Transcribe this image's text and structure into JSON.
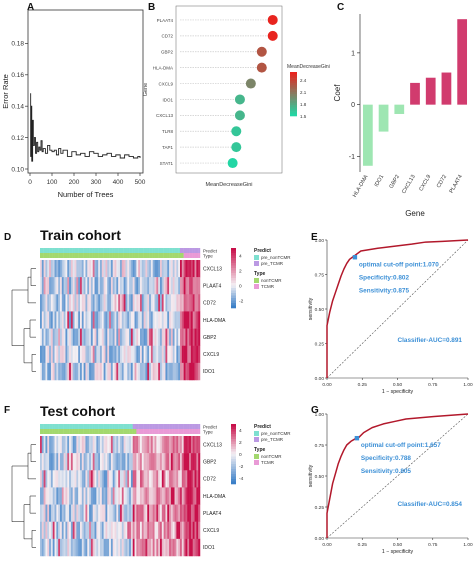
{
  "panel_labels": {
    "a": "A",
    "b": "B",
    "c": "C",
    "d": "D",
    "e": "E",
    "f": "F",
    "g": "G"
  },
  "colors": {
    "line": "#222222",
    "roc": "#b2182b",
    "diag": "#555555",
    "cut": "#3b8fd6",
    "annot": "#3b8fd6",
    "bar_pos": "#d13b6e",
    "bar_neg": "#9ee6b2",
    "heat_high": "#c8104a",
    "heat_low": "#3a7fc7",
    "heat_mid": "#f4f0f4",
    "pred_non": "#7ee0d0",
    "pred_tcmr": "#bb99e3",
    "type_non": "#a3d86e",
    "type_tcmr": "#e99ad6"
  },
  "chart_data": [
    {
      "id": "a",
      "type": "line",
      "xlabel": "Number of Trees",
      "ylabel": "Error Rate",
      "xlim": [
        0,
        500
      ],
      "ylim": [
        0.1,
        0.2
      ],
      "xticks": [
        0,
        100,
        200,
        300,
        400,
        500
      ],
      "yticks": [
        0.1,
        0.12,
        0.14,
        0.16,
        0.18
      ],
      "ytick_labels": [
        "0.10",
        "0.12",
        "0.14",
        "0.16",
        "0.18"
      ],
      "series": [
        {
          "x": [
            1,
            3,
            5,
            8,
            12,
            15,
            20,
            25,
            30,
            35,
            40,
            45,
            50,
            55,
            60,
            70,
            80,
            90,
            100,
            110,
            120,
            130,
            140,
            150,
            170,
            190,
            210,
            230,
            250,
            270,
            290,
            310,
            330,
            350,
            370,
            390,
            410,
            430,
            450,
            470,
            490,
            500
          ],
          "y": [
            0.148,
            0.108,
            0.14,
            0.105,
            0.131,
            0.115,
            0.12,
            0.11,
            0.117,
            0.111,
            0.114,
            0.112,
            0.118,
            0.111,
            0.113,
            0.11,
            0.115,
            0.112,
            0.111,
            0.112,
            0.109,
            0.113,
            0.11,
            0.112,
            0.108,
            0.111,
            0.109,
            0.11,
            0.108,
            0.111,
            0.11,
            0.108,
            0.109,
            0.11,
            0.108,
            0.109,
            0.107,
            0.109,
            0.108,
            0.107,
            0.108,
            0.107
          ]
        }
      ]
    },
    {
      "id": "b",
      "type": "scatter",
      "xlabel": "MeanDecreaseGini",
      "ylabel": "Gene",
      "categories": [
        "PLAAT4",
        "CD72",
        "GBP2",
        "HLA-DMA",
        "CXCL9",
        "IDO1",
        "CXCL13",
        "TLR8",
        "TAP1",
        "STAT1"
      ],
      "values": [
        2.6,
        2.6,
        2.3,
        2.3,
        2.0,
        1.7,
        1.7,
        1.6,
        1.6,
        1.5
      ],
      "xlim": [
        0,
        2.8
      ],
      "legend": {
        "title": "MeanDecreaseGini",
        "ticks": [
          "2.4",
          "2.1",
          "1.8",
          "1.5"
        ],
        "tick_values": [
          2.4,
          2.1,
          1.8,
          1.5
        ],
        "range": [
          1.5,
          2.6
        ],
        "high": "#e8241f",
        "low": "#22d6a4"
      }
    },
    {
      "id": "c",
      "type": "bar",
      "xlabel": "Gene",
      "ylabel": "Coef",
      "categories": [
        "HLA-DMA",
        "IDO1",
        "GBP2",
        "CXCL13",
        "CXCL9",
        "CD72",
        "PLAAT4"
      ],
      "values": [
        -1.18,
        -0.52,
        -0.18,
        0.42,
        0.52,
        0.62,
        1.65
      ],
      "ylim": [
        -1.3,
        1.75
      ],
      "yticks": [
        -1,
        0,
        1
      ],
      "ytick_labels": [
        "-1",
        "0",
        "1"
      ]
    },
    {
      "id": "d",
      "type": "heatmap",
      "title": "Train cohort",
      "rows": [
        "CXCL13",
        "PLAAT4",
        "CD72",
        "HLA-DMA",
        "GBP2",
        "CXCL9",
        "IDO1"
      ],
      "annotation_rows": [
        "Predict",
        "Type"
      ],
      "legend": {
        "predict_title": "Predict",
        "predict_items": [
          "pre_nonTCMR",
          "pre_TCMR"
        ],
        "type_title": "Type",
        "type_items": [
          "nonTCMR",
          "TCMR"
        ],
        "scale_ticks": [
          "4",
          "2",
          "0",
          "-2"
        ],
        "scale_tick_values": [
          4,
          2,
          0,
          -2
        ],
        "scale_range": [
          -3,
          5
        ]
      }
    },
    {
      "id": "e",
      "type": "line",
      "xlabel": "1 − specificity",
      "ylabel": "sensitivity",
      "xlim": [
        0,
        1
      ],
      "ylim": [
        0,
        1
      ],
      "ticks": [
        0,
        0.25,
        0.5,
        0.75,
        1
      ],
      "tick_labels": [
        "0.00",
        "0.25",
        "0.50",
        "0.75",
        "1.00"
      ],
      "roc_x": [
        0,
        0,
        0.02,
        0.04,
        0.06,
        0.08,
        0.1,
        0.12,
        0.14,
        0.16,
        0.18,
        0.2,
        0.24,
        0.3,
        0.36,
        0.44,
        0.52,
        0.6,
        0.7,
        0.82,
        1
      ],
      "roc_y": [
        0,
        0.38,
        0.48,
        0.56,
        0.62,
        0.68,
        0.74,
        0.79,
        0.83,
        0.86,
        0.875,
        0.89,
        0.92,
        0.93,
        0.94,
        0.95,
        0.96,
        0.97,
        0.985,
        0.99,
        1
      ],
      "cutoff": [
        0.198,
        0.875
      ],
      "annotations": [
        "optimal cut-off point:1.070",
        "Specificity:0.802",
        "Sensitivity:0.875",
        "Classifier-AUC=0.891"
      ]
    },
    {
      "id": "f",
      "type": "heatmap",
      "title": "Test cohort",
      "rows": [
        "CXCL13",
        "GBP2",
        "CD72",
        "HLA-DMA",
        "PLAAT4",
        "CXCL9",
        "IDO1"
      ],
      "annotation_rows": [
        "Predict",
        "Type"
      ],
      "legend": {
        "predict_title": "Predict",
        "predict_items": [
          "pre_nonTCMR",
          "pre_TCMR"
        ],
        "type_title": "Type",
        "type_items": [
          "nonTCMR",
          "TCMR"
        ],
        "scale_ticks": [
          "4",
          "2",
          "0",
          "-2",
          "-4"
        ],
        "scale_tick_values": [
          4,
          2,
          0,
          -2,
          -4
        ],
        "scale_range": [
          -5,
          5
        ]
      }
    },
    {
      "id": "g",
      "type": "line",
      "xlabel": "1 − specificity",
      "ylabel": "sensitivity",
      "xlim": [
        0,
        1
      ],
      "ylim": [
        0,
        1
      ],
      "ticks": [
        0,
        0.25,
        0.5,
        0.75,
        1
      ],
      "tick_labels": [
        "0.00",
        "0.25",
        "0.50",
        "0.75",
        "1.00"
      ],
      "roc_x": [
        0,
        0,
        0.02,
        0.04,
        0.06,
        0.08,
        0.1,
        0.12,
        0.14,
        0.17,
        0.2,
        0.22,
        0.26,
        0.32,
        0.4,
        0.48,
        0.56,
        0.66,
        0.76,
        0.88,
        1
      ],
      "roc_y": [
        0,
        0.2,
        0.32,
        0.44,
        0.52,
        0.6,
        0.66,
        0.71,
        0.75,
        0.78,
        0.8,
        0.805,
        0.85,
        0.89,
        0.92,
        0.94,
        0.96,
        0.97,
        0.98,
        0.99,
        1
      ],
      "cutoff": [
        0.212,
        0.805
      ],
      "annotations": [
        "optimal cut-off point:1.657",
        "Specificity:0.788",
        "Sensitivity:0.805",
        "Classifier-AUC=0.854"
      ]
    }
  ]
}
